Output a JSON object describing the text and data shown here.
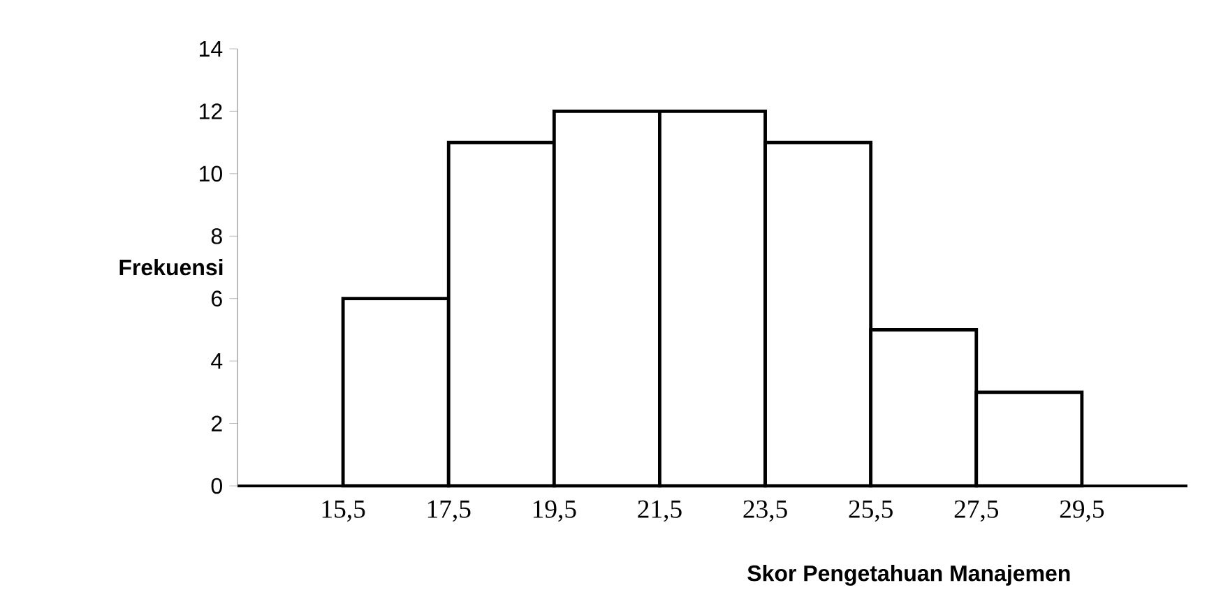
{
  "chart_data": {
    "type": "histogram",
    "xlabel": "Skor Pengetahuan Manajemen",
    "ylabel": "Frekuensi",
    "bins": [
      15.5,
      17.5,
      19.5,
      21.5,
      23.5,
      25.5,
      27.5,
      29.5
    ],
    "values": [
      6,
      11,
      12,
      12,
      11,
      5,
      3
    ],
    "color": "#ffffff",
    "xlim": [
      13.5,
      31.5
    ],
    "xticks": [
      {
        "value": 15.5,
        "label": "15,5"
      },
      {
        "value": 17.5,
        "label": "17,5"
      },
      {
        "value": 19.5,
        "label": "19,5"
      },
      {
        "value": 21.5,
        "label": "21,5"
      },
      {
        "value": 23.5,
        "label": "23,5"
      },
      {
        "value": 25.5,
        "label": "25,5"
      },
      {
        "value": 27.5,
        "label": "27,5"
      },
      {
        "value": 29.5,
        "label": "29,5"
      }
    ],
    "ylim": [
      0,
      14
    ],
    "yticks": [
      0,
      2,
      4,
      6,
      8,
      10,
      12,
      14
    ],
    "grid": false
  }
}
